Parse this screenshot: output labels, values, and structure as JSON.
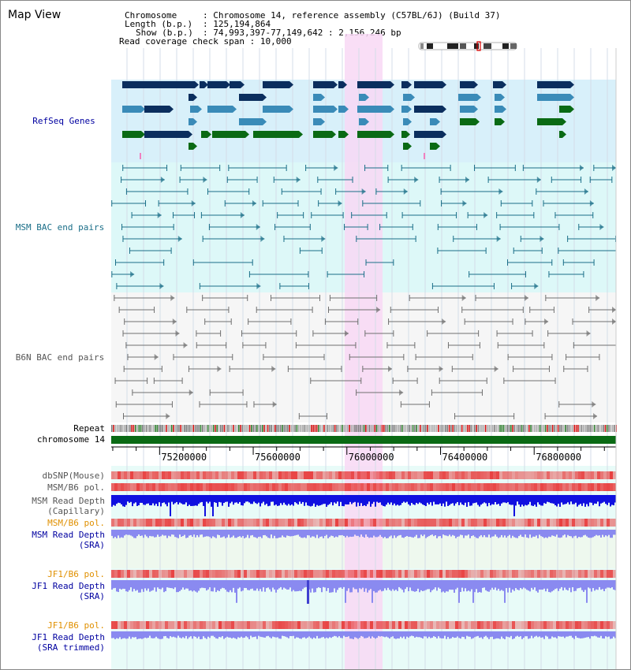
{
  "title": "Map View",
  "header": {
    "chromosome_key": "Chromosome",
    "chromosome_value": "Chromosome 14, reference assembly (C57BL/6J) (Build 37)",
    "length_key": "Length (b.p.)",
    "length_value": "125,194,864",
    "show_key": "Show (b.p.)",
    "show_value": "74,993,397-77,149,642 : 2,156,246 bp",
    "coverage_key": "Read coverage check span",
    "coverage_value": "10,000"
  },
  "tracks": {
    "refseq": "RefSeq Genes",
    "msm_bac": "MSM BAC end pairs",
    "b6n_bac": "B6N BAC end pairs",
    "repeat": "Repeat",
    "chromosome": "chromosome 14",
    "dbsnp": "dbSNP(Mouse)",
    "msm_b6_pol": "MSM/B6 pol.",
    "msm_depth_cap_1": "MSM Read Depth",
    "msm_depth_cap_2": "(Capillary)",
    "msm_b6_pol_sra": "MSM/B6 pol.",
    "msm_depth_sra_1": "MSM Read Depth",
    "msm_depth_sra_2": "(SRA)",
    "jf1_b6_pol": "JF1/B6 pol.",
    "jf1_depth_1": "JF1 Read Depth",
    "jf1_depth_2": "(SRA)",
    "jf1_b6_pol_2": "JF1/B6 pol.",
    "jf1_trim_1": "JF1 Read Depth",
    "jf1_trim_2": "(SRA trimmed)"
  },
  "axis": {
    "ticks": [
      {
        "pos": 75200000,
        "label": "75200000"
      },
      {
        "pos": 75600000,
        "label": "75600000"
      },
      {
        "pos": 76000000,
        "label": "76000000"
      },
      {
        "pos": 76400000,
        "label": "76400000"
      },
      {
        "pos": 76800000,
        "label": "76800000"
      }
    ],
    "start": 74993397,
    "end": 77149642
  },
  "colors": {
    "refseq_bg": "#d8f0fa",
    "msm_bg": "#ddf8f8",
    "b6n_bg": "#f6f6f6",
    "highlight": "#f8d8f4",
    "gene_dark": "#0b2e5e",
    "gene_mid": "#3a8bb8",
    "gene_green": "#0a6a14",
    "msm_line": "#1a6e88",
    "b6n_line": "#707070",
    "depth_cap": "#1010e0",
    "depth_sra": "#8a8af0",
    "pol": "#e84040",
    "label_blue": "#0000a0",
    "label_teal": "#1a6e88",
    "label_grey": "#555555",
    "label_orange": "#e09000"
  }
}
